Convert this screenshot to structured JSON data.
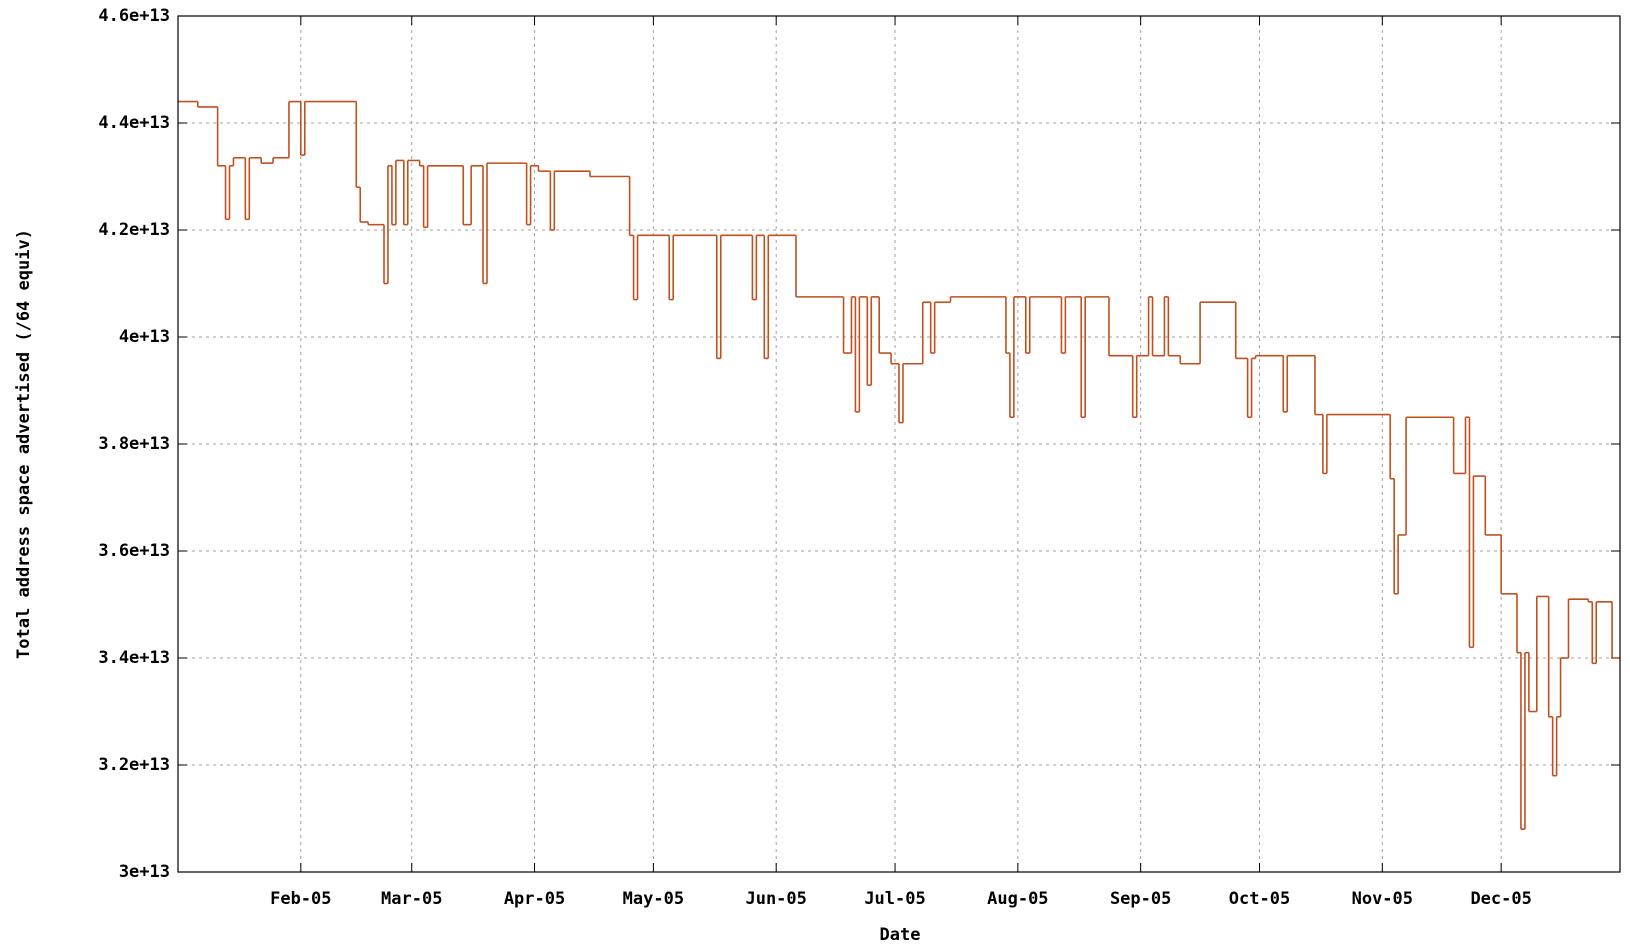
{
  "chart_data": {
    "type": "line",
    "x_label": "Date",
    "y_label": "Total address space advertised (/64 equiv)",
    "step": true,
    "grid": true,
    "xlim": [
      "2005-01-01",
      "2005-12-31"
    ],
    "xticks": [
      {
        "value": "2005-02-01",
        "label": "Feb-05"
      },
      {
        "value": "2005-03-01",
        "label": "Mar-05"
      },
      {
        "value": "2005-04-01",
        "label": "Apr-05"
      },
      {
        "value": "2005-05-01",
        "label": "May-05"
      },
      {
        "value": "2005-06-01",
        "label": "Jun-05"
      },
      {
        "value": "2005-07-01",
        "label": "Jul-05"
      },
      {
        "value": "2005-08-01",
        "label": "Aug-05"
      },
      {
        "value": "2005-09-01",
        "label": "Sep-05"
      },
      {
        "value": "2005-10-01",
        "label": "Oct-05"
      },
      {
        "value": "2005-11-01",
        "label": "Nov-05"
      },
      {
        "value": "2005-12-01",
        "label": "Dec-05"
      }
    ],
    "ylim": [
      30000000000000.0,
      46000000000000.0
    ],
    "yticks": [
      {
        "value": 30000000000000.0,
        "label": "3e+13"
      },
      {
        "value": 32000000000000.0,
        "label": "3.2e+13"
      },
      {
        "value": 34000000000000.0,
        "label": "3.4e+13"
      },
      {
        "value": 36000000000000.0,
        "label": "3.6e+13"
      },
      {
        "value": 38000000000000.0,
        "label": "3.8e+13"
      },
      {
        "value": 40000000000000.0,
        "label": "4e+13"
      },
      {
        "value": 42000000000000.0,
        "label": "4.2e+13"
      },
      {
        "value": 44000000000000.0,
        "label": "4.4e+13"
      },
      {
        "value": 46000000000000.0,
        "label": "4.6e+13"
      }
    ],
    "series": [
      {
        "color": "#c0501e",
        "x": [
          "2005-01-01",
          "2005-01-06",
          "2005-01-11",
          "2005-01-13",
          "2005-01-14",
          "2005-01-15",
          "2005-01-18",
          "2005-01-19",
          "2005-01-22",
          "2005-01-25",
          "2005-01-29",
          "2005-02-01",
          "2005-02-02",
          "2005-02-15",
          "2005-02-16",
          "2005-02-18",
          "2005-02-22",
          "2005-02-23",
          "2005-02-24",
          "2005-02-25",
          "2005-02-27",
          "2005-02-28",
          "2005-03-03",
          "2005-03-04",
          "2005-03-05",
          "2005-03-14",
          "2005-03-16",
          "2005-03-19",
          "2005-03-20",
          "2005-03-30",
          "2005-03-31",
          "2005-04-02",
          "2005-04-05",
          "2005-04-06",
          "2005-04-15",
          "2005-04-25",
          "2005-04-26",
          "2005-04-27",
          "2005-05-05",
          "2005-05-06",
          "2005-05-17",
          "2005-05-18",
          "2005-05-26",
          "2005-05-27",
          "2005-05-29",
          "2005-05-30",
          "2005-06-06",
          "2005-06-18",
          "2005-06-20",
          "2005-06-21",
          "2005-06-22",
          "2005-06-24",
          "2005-06-25",
          "2005-06-27",
          "2005-06-30",
          "2005-07-02",
          "2005-07-03",
          "2005-07-08",
          "2005-07-10",
          "2005-07-11",
          "2005-07-15",
          "2005-07-29",
          "2005-07-30",
          "2005-07-31",
          "2005-08-03",
          "2005-08-04",
          "2005-08-12",
          "2005-08-13",
          "2005-08-17",
          "2005-08-18",
          "2005-08-24",
          "2005-08-30",
          "2005-08-31",
          "2005-09-03",
          "2005-09-04",
          "2005-09-07",
          "2005-09-08",
          "2005-09-11",
          "2005-09-16",
          "2005-09-25",
          "2005-09-28",
          "2005-09-29",
          "2005-09-30",
          "2005-10-07",
          "2005-10-08",
          "2005-10-15",
          "2005-10-17",
          "2005-10-18",
          "2005-11-03",
          "2005-11-04",
          "2005-11-05",
          "2005-11-07",
          "2005-11-19",
          "2005-11-22",
          "2005-11-23",
          "2005-11-24",
          "2005-11-27",
          "2005-12-01",
          "2005-12-05",
          "2005-12-06",
          "2005-12-07",
          "2005-12-08",
          "2005-12-10",
          "2005-12-13",
          "2005-12-14",
          "2005-12-15",
          "2005-12-16",
          "2005-12-18",
          "2005-12-23",
          "2005-12-24",
          "2005-12-25",
          "2005-12-29"
        ],
        "values": [
          44400000000000.0,
          44300000000000.0,
          43200000000000.0,
          42200000000000.0,
          43200000000000.0,
          43350000000000.0,
          42200000000000.0,
          43350000000000.0,
          43250000000000.0,
          43350000000000.0,
          44400000000000.0,
          43400000000000.0,
          44400000000000.0,
          42800000000000.0,
          42150000000000.0,
          42100000000000.0,
          41000000000000.0,
          43200000000000.0,
          42100000000000.0,
          43300000000000.0,
          42100000000000.0,
          43300000000000.0,
          43200000000000.0,
          42050000000000.0,
          43200000000000.0,
          42100000000000.0,
          43200000000000.0,
          41000000000000.0,
          43250000000000.0,
          42100000000000.0,
          43200000000000.0,
          43100000000000.0,
          42000000000000.0,
          43100000000000.0,
          43000000000000.0,
          41900000000000.0,
          40700000000000.0,
          41900000000000.0,
          40700000000000.0,
          41900000000000.0,
          39600000000000.0,
          41900000000000.0,
          40700000000000.0,
          41900000000000.0,
          39600000000000.0,
          41900000000000.0,
          40750000000000.0,
          39700000000000.0,
          40750000000000.0,
          38600000000000.0,
          40750000000000.0,
          39100000000000.0,
          40750000000000.0,
          39700000000000.0,
          39500000000000.0,
          38400000000000.0,
          39500000000000.0,
          40650000000000.0,
          39700000000000.0,
          40650000000000.0,
          40750000000000.0,
          39700000000000.0,
          38500000000000.0,
          40750000000000.0,
          39700000000000.0,
          40750000000000.0,
          39700000000000.0,
          40750000000000.0,
          38500000000000.0,
          40750000000000.0,
          39650000000000.0,
          38500000000000.0,
          39650000000000.0,
          40750000000000.0,
          39650000000000.0,
          40750000000000.0,
          39650000000000.0,
          39500000000000.0,
          40650000000000.0,
          39600000000000.0,
          38500000000000.0,
          39600000000000.0,
          39650000000000.0,
          38600000000000.0,
          39650000000000.0,
          38550000000000.0,
          37450000000000.0,
          38550000000000.0,
          37350000000000.0,
          35200000000000.0,
          36300000000000.0,
          38500000000000.0,
          37450000000000.0,
          38500000000000.0,
          34200000000000.0,
          37400000000000.0,
          36300000000000.0,
          35200000000000.0,
          34100000000000.0,
          30800000000000.0,
          34100000000000.0,
          33000000000000.0,
          35150000000000.0,
          32900000000000.0,
          31800000000000.0,
          32900000000000.0,
          34000000000000.0,
          35100000000000.0,
          35050000000000.0,
          33900000000000.0,
          35050000000000.0,
          34000000000000.0
        ]
      }
    ]
  }
}
